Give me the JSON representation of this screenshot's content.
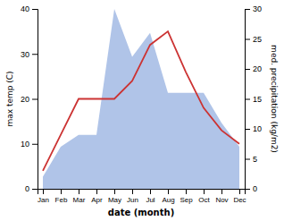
{
  "chart_data": {
    "type": "line",
    "categories": [
      "Jan",
      "Feb",
      "Mar",
      "Apr",
      "May",
      "Jun",
      "Jul",
      "Aug",
      "Sep",
      "Oct",
      "Nov",
      "Dec"
    ],
    "xlabel": "date (month)",
    "ylabel": "max temp (C)",
    "y2label": "med. precipitation (kg/m2)",
    "ylim": [
      0,
      40
    ],
    "yticks": [
      0,
      10,
      20,
      30,
      40
    ],
    "y2lim": [
      0,
      30
    ],
    "y2ticks": [
      0,
      5,
      10,
      15,
      20,
      25,
      30
    ],
    "grid": false,
    "series": [
      {
        "type": "area",
        "axis": "y2",
        "color": "#b0c4e8",
        "values": [
          2,
          7,
          9,
          9,
          30,
          22,
          26,
          16,
          16,
          16,
          11,
          7
        ]
      },
      {
        "type": "line",
        "color": "#cc3333",
        "values": [
          4,
          12,
          20,
          20,
          20,
          24,
          32,
          35,
          26,
          18,
          13,
          10
        ]
      }
    ]
  }
}
